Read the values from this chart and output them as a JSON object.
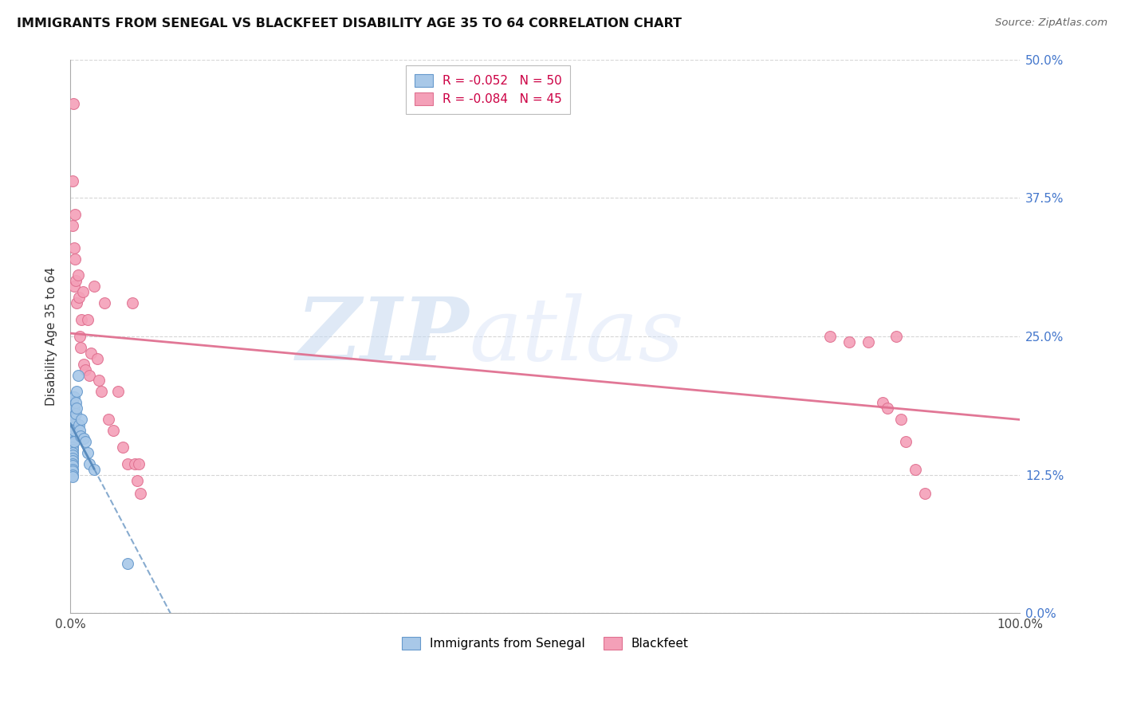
{
  "title": "IMMIGRANTS FROM SENEGAL VS BLACKFEET DISABILITY AGE 35 TO 64 CORRELATION CHART",
  "source": "Source: ZipAtlas.com",
  "ylabel": "Disability Age 35 to 64",
  "xlim": [
    0.0,
    1.0
  ],
  "ylim": [
    0.0,
    0.5
  ],
  "xtick_positions": [
    0.0,
    0.1,
    0.2,
    0.3,
    0.4,
    0.5,
    0.6,
    0.7,
    0.8,
    0.9,
    1.0
  ],
  "xtick_labels": [
    "0.0%",
    "",
    "",
    "",
    "",
    "",
    "",
    "",
    "",
    "",
    "100.0%"
  ],
  "ytick_positions": [
    0.0,
    0.125,
    0.25,
    0.375,
    0.5
  ],
  "ytick_labels_right": [
    "0.0%",
    "12.5%",
    "25.0%",
    "37.5%",
    "50.0%"
  ],
  "background_color": "#ffffff",
  "grid_color": "#cccccc",
  "senegal_color": "#a8c8e8",
  "senegal_edge_color": "#6699cc",
  "blackfeet_color": "#f4a0b8",
  "blackfeet_edge_color": "#e07090",
  "trend_blackfeet_color": "#e07090",
  "trend_senegal_color": "#5588bb",
  "marker_size": 100,
  "senegal_x": [
    0.002,
    0.002,
    0.002,
    0.002,
    0.002,
    0.002,
    0.002,
    0.002,
    0.002,
    0.002,
    0.002,
    0.002,
    0.002,
    0.002,
    0.002,
    0.002,
    0.002,
    0.002,
    0.002,
    0.002,
    0.002,
    0.002,
    0.002,
    0.002,
    0.002,
    0.002,
    0.002,
    0.002,
    0.002,
    0.002,
    0.004,
    0.004,
    0.004,
    0.004,
    0.004,
    0.006,
    0.006,
    0.007,
    0.007,
    0.008,
    0.009,
    0.01,
    0.011,
    0.012,
    0.014,
    0.016,
    0.018,
    0.02,
    0.025,
    0.06
  ],
  "senegal_y": [
    0.195,
    0.192,
    0.19,
    0.188,
    0.185,
    0.182,
    0.18,
    0.178,
    0.175,
    0.173,
    0.17,
    0.168,
    0.165,
    0.163,
    0.16,
    0.158,
    0.155,
    0.153,
    0.15,
    0.148,
    0.145,
    0.143,
    0.14,
    0.138,
    0.135,
    0.133,
    0.13,
    0.128,
    0.125,
    0.123,
    0.195,
    0.185,
    0.175,
    0.165,
    0.155,
    0.19,
    0.18,
    0.2,
    0.185,
    0.215,
    0.17,
    0.165,
    0.16,
    0.175,
    0.158,
    0.155,
    0.145,
    0.135,
    0.13,
    0.045
  ],
  "blackfeet_x": [
    0.002,
    0.002,
    0.003,
    0.004,
    0.004,
    0.005,
    0.005,
    0.006,
    0.007,
    0.008,
    0.009,
    0.01,
    0.011,
    0.012,
    0.013,
    0.014,
    0.016,
    0.018,
    0.02,
    0.022,
    0.025,
    0.028,
    0.03,
    0.033,
    0.036,
    0.04,
    0.045,
    0.05,
    0.055,
    0.06,
    0.065,
    0.068,
    0.07,
    0.072,
    0.074,
    0.8,
    0.82,
    0.84,
    0.855,
    0.86,
    0.87,
    0.875,
    0.88,
    0.89,
    0.9
  ],
  "blackfeet_y": [
    0.39,
    0.35,
    0.46,
    0.33,
    0.295,
    0.36,
    0.32,
    0.3,
    0.28,
    0.305,
    0.285,
    0.25,
    0.24,
    0.265,
    0.29,
    0.225,
    0.22,
    0.265,
    0.215,
    0.235,
    0.295,
    0.23,
    0.21,
    0.2,
    0.28,
    0.175,
    0.165,
    0.2,
    0.15,
    0.135,
    0.28,
    0.135,
    0.12,
    0.135,
    0.108,
    0.25,
    0.245,
    0.245,
    0.19,
    0.185,
    0.25,
    0.175,
    0.155,
    0.13,
    0.108
  ],
  "watermark_zip_color": "#c0d4ee",
  "watermark_atlas_color": "#d0ddf0"
}
